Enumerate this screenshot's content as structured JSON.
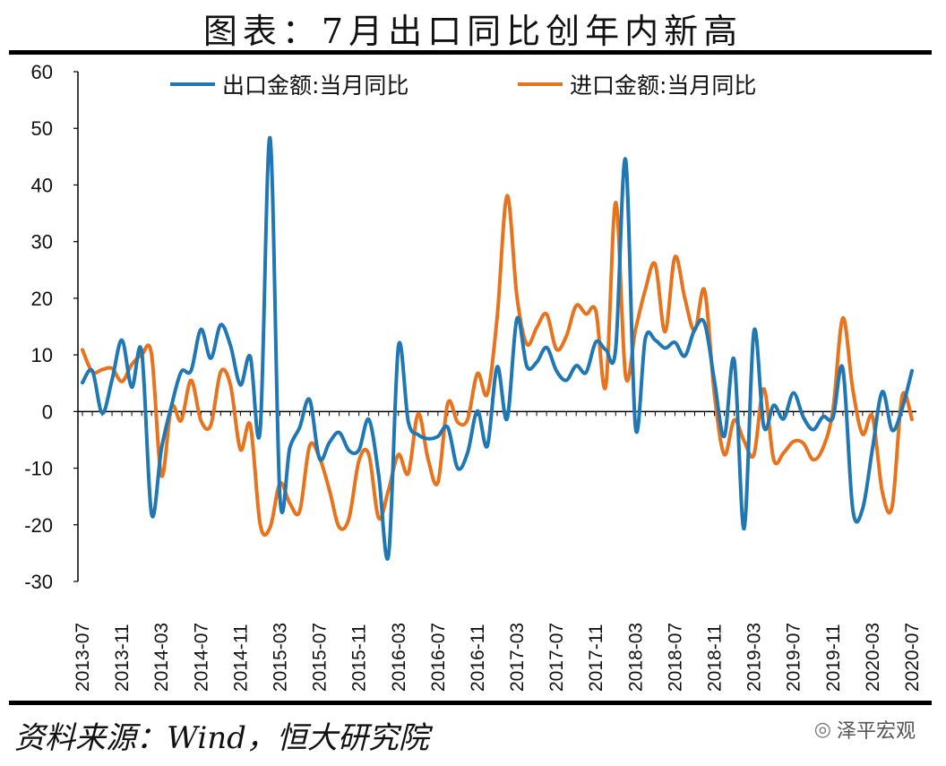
{
  "title": "图表：7月出口同比创年内新高",
  "source": "资料来源：Wind，恒大研究院",
  "brand": {
    "name": "泽平宏观",
    "icon": "wechat-icon"
  },
  "colors": {
    "export": "#1f77b4",
    "import": "#e8731d"
  },
  "chart_data": {
    "type": "line",
    "ylim": [
      -30,
      60
    ],
    "yticks": [
      -30,
      -20,
      -10,
      0,
      10,
      20,
      30,
      40,
      50,
      60
    ],
    "xtick_labels": [
      "2013-07",
      "2013-11",
      "2014-03",
      "2014-07",
      "2014-11",
      "2015-03",
      "2015-07",
      "2015-11",
      "2016-03",
      "2016-07",
      "2016-11",
      "2017-03",
      "2017-07",
      "2017-11",
      "2018-03",
      "2018-07",
      "2018-11",
      "2019-03",
      "2019-07",
      "2019-11",
      "2020-03",
      "2020-07"
    ],
    "x": [
      "2013-07",
      "2013-08",
      "2013-09",
      "2013-10",
      "2013-11",
      "2013-12",
      "2014-01",
      "2014-02",
      "2014-03",
      "2014-04",
      "2014-05",
      "2014-06",
      "2014-07",
      "2014-08",
      "2014-09",
      "2014-10",
      "2014-11",
      "2014-12",
      "2015-01",
      "2015-02",
      "2015-03",
      "2015-04",
      "2015-05",
      "2015-06",
      "2015-07",
      "2015-08",
      "2015-09",
      "2015-10",
      "2015-11",
      "2015-12",
      "2016-01",
      "2016-02",
      "2016-03",
      "2016-04",
      "2016-05",
      "2016-06",
      "2016-07",
      "2016-08",
      "2016-09",
      "2016-10",
      "2016-11",
      "2016-12",
      "2017-01",
      "2017-02",
      "2017-03",
      "2017-04",
      "2017-05",
      "2017-06",
      "2017-07",
      "2017-08",
      "2017-09",
      "2017-10",
      "2017-11",
      "2017-12",
      "2018-01",
      "2018-02",
      "2018-03",
      "2018-04",
      "2018-05",
      "2018-06",
      "2018-07",
      "2018-08",
      "2018-09",
      "2018-10",
      "2018-11",
      "2018-12",
      "2019-01",
      "2019-02",
      "2019-03",
      "2019-04",
      "2019-05",
      "2019-06",
      "2019-07",
      "2019-08",
      "2019-09",
      "2019-10",
      "2019-11",
      "2019-12",
      "2020-01",
      "2020-02",
      "2020-03",
      "2020-04",
      "2020-05",
      "2020-06",
      "2020-07"
    ],
    "series": [
      {
        "name": "出口金额:当月同比",
        "color": "#1f77b4",
        "values": [
          5.1,
          7.2,
          -0.3,
          5.6,
          12.6,
          4.3,
          10.6,
          -18.1,
          -6.6,
          0.9,
          7.0,
          7.2,
          14.5,
          9.4,
          15.3,
          11.6,
          4.7,
          9.7,
          -3.3,
          48.3,
          -15.0,
          -6.4,
          -2.8,
          2.1,
          -8.3,
          -5.5,
          -3.7,
          -6.9,
          -6.8,
          -1.4,
          -11.2,
          -25.4,
          11.5,
          -1.8,
          -4.1,
          -4.8,
          -4.4,
          -2.8,
          -10.0,
          -7.3,
          0.1,
          -6.1,
          7.9,
          -1.3,
          16.4,
          8.0,
          8.7,
          11.3,
          7.2,
          5.5,
          8.1,
          6.9,
          12.3,
          10.9,
          11.1,
          44.5,
          -2.7,
          12.9,
          12.6,
          11.2,
          12.2,
          9.8,
          14.5,
          15.6,
          5.4,
          -4.4,
          9.1,
          -20.7,
          14.2,
          -2.7,
          1.1,
          -1.3,
          3.3,
          -1.0,
          -3.2,
          -0.9,
          -1.1,
          7.6,
          -17.2,
          -17.2,
          -6.6,
          3.5,
          -3.3,
          0.5,
          7.2
        ]
      },
      {
        "name": "进口金额:当月同比",
        "color": "#e8731d",
        "values": [
          10.9,
          7.0,
          7.4,
          7.6,
          5.3,
          8.3,
          10.0,
          10.1,
          -11.3,
          0.8,
          -1.6,
          5.5,
          -1.6,
          -2.4,
          7.0,
          4.6,
          -6.7,
          -2.4,
          -19.9,
          -20.5,
          -12.7,
          -16.2,
          -17.6,
          -6.1,
          -8.1,
          -13.8,
          -20.4,
          -18.8,
          -8.7,
          -7.6,
          -18.8,
          -13.8,
          -7.6,
          -10.9,
          -0.4,
          -8.4,
          -12.5,
          1.5,
          -1.9,
          -1.4,
          6.7,
          3.1,
          16.7,
          38.1,
          20.3,
          11.9,
          14.8,
          17.2,
          11.0,
          13.3,
          18.7,
          17.2,
          17.7,
          4.5,
          36.9,
          6.3,
          14.4,
          21.5,
          26.0,
          14.1,
          27.3,
          20.0,
          14.3,
          21.4,
          3.0,
          -7.6,
          -1.5,
          -5.2,
          -7.6,
          4.0,
          -8.5,
          -7.3,
          -5.3,
          -5.6,
          -8.5,
          -6.4,
          0.3,
          16.5,
          4.0,
          -4.0,
          -0.9,
          -14.2,
          -16.7,
          2.7,
          -1.4
        ]
      }
    ]
  }
}
